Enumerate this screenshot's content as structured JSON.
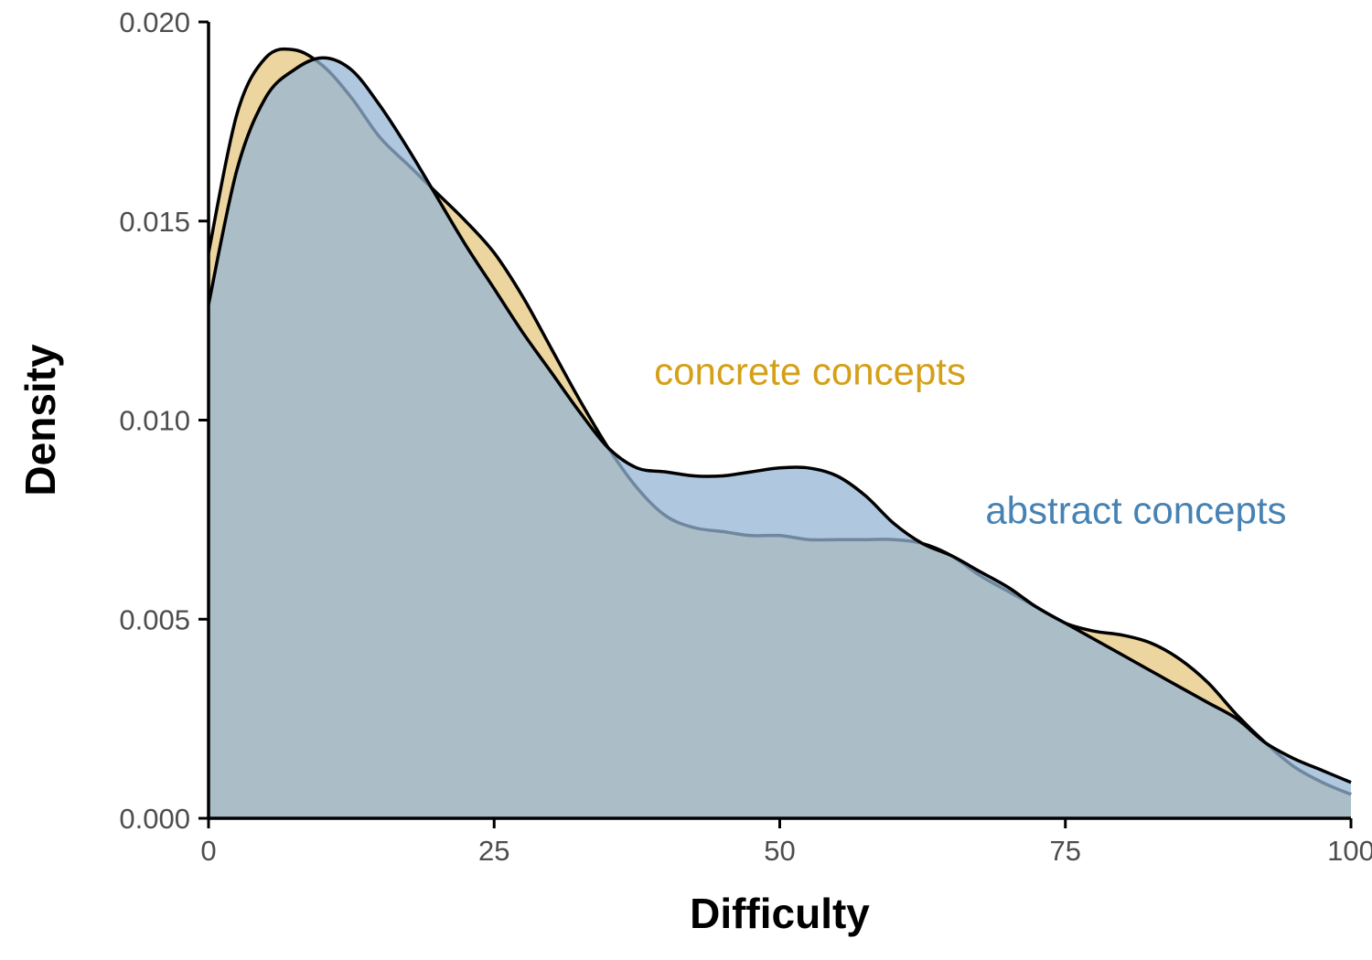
{
  "chart_data": {
    "type": "area",
    "xlabel": "Difficulty",
    "ylabel": "Density",
    "xlim": [
      0,
      100
    ],
    "ylim": [
      0,
      0.02
    ],
    "x_ticks": [
      0,
      25,
      50,
      75,
      100
    ],
    "x_tick_labels": [
      "0",
      "25",
      "50",
      "75",
      "100"
    ],
    "y_ticks": [
      0,
      0.005,
      0.01,
      0.015,
      0.02
    ],
    "y_tick_labels": [
      "0.000",
      "0.005",
      "0.010",
      "0.015",
      "0.020"
    ],
    "grid": false,
    "legend": "none",
    "x": [
      0,
      2.5,
      5,
      7.5,
      10,
      12.5,
      15,
      17.5,
      20,
      22.5,
      25,
      27.5,
      30,
      32.5,
      35,
      37.5,
      40,
      42.5,
      45,
      47.5,
      50,
      52.5,
      55,
      57.5,
      60,
      62.5,
      65,
      67.5,
      70,
      72.5,
      75,
      77.5,
      80,
      82.5,
      85,
      87.5,
      90,
      92.5,
      95,
      97.5,
      100
    ],
    "series": [
      {
        "name": "concrete concepts",
        "color": "#D4A017",
        "fill": "#E6C77D",
        "values": [
          0.0142,
          0.0177,
          0.0191,
          0.0193,
          0.0189,
          0.0181,
          0.0171,
          0.0164,
          0.0157,
          0.015,
          0.0142,
          0.0131,
          0.0118,
          0.0105,
          0.0093,
          0.0083,
          0.0076,
          0.0073,
          0.0072,
          0.0071,
          0.0071,
          0.007,
          0.007,
          0.007,
          0.007,
          0.0069,
          0.0066,
          0.0061,
          0.0057,
          0.0053,
          0.0049,
          0.0047,
          0.0046,
          0.0044,
          0.004,
          0.0034,
          0.0026,
          0.0019,
          0.0013,
          0.0009,
          0.0006
        ]
      },
      {
        "name": "abstract concepts",
        "color": "#4682B4",
        "fill": "#96B6D4",
        "values": [
          0.0129,
          0.0163,
          0.0181,
          0.0188,
          0.0191,
          0.0188,
          0.0179,
          0.0168,
          0.0156,
          0.0144,
          0.0133,
          0.0122,
          0.0112,
          0.0102,
          0.0093,
          0.0088,
          0.0087,
          0.0086,
          0.0086,
          0.0087,
          0.0088,
          0.0088,
          0.0086,
          0.0081,
          0.0074,
          0.0069,
          0.0066,
          0.0062,
          0.0058,
          0.0053,
          0.0049,
          0.0045,
          0.0041,
          0.0037,
          0.0033,
          0.0029,
          0.0025,
          0.0019,
          0.0015,
          0.0012,
          0.0009
        ]
      }
    ],
    "annotations": [
      {
        "text": "concrete concepts",
        "x": 39,
        "y": 0.0109,
        "color": "#D4A017"
      },
      {
        "text": "abstract concepts",
        "x": 68,
        "y": 0.0074,
        "color": "#4682B4"
      }
    ]
  }
}
